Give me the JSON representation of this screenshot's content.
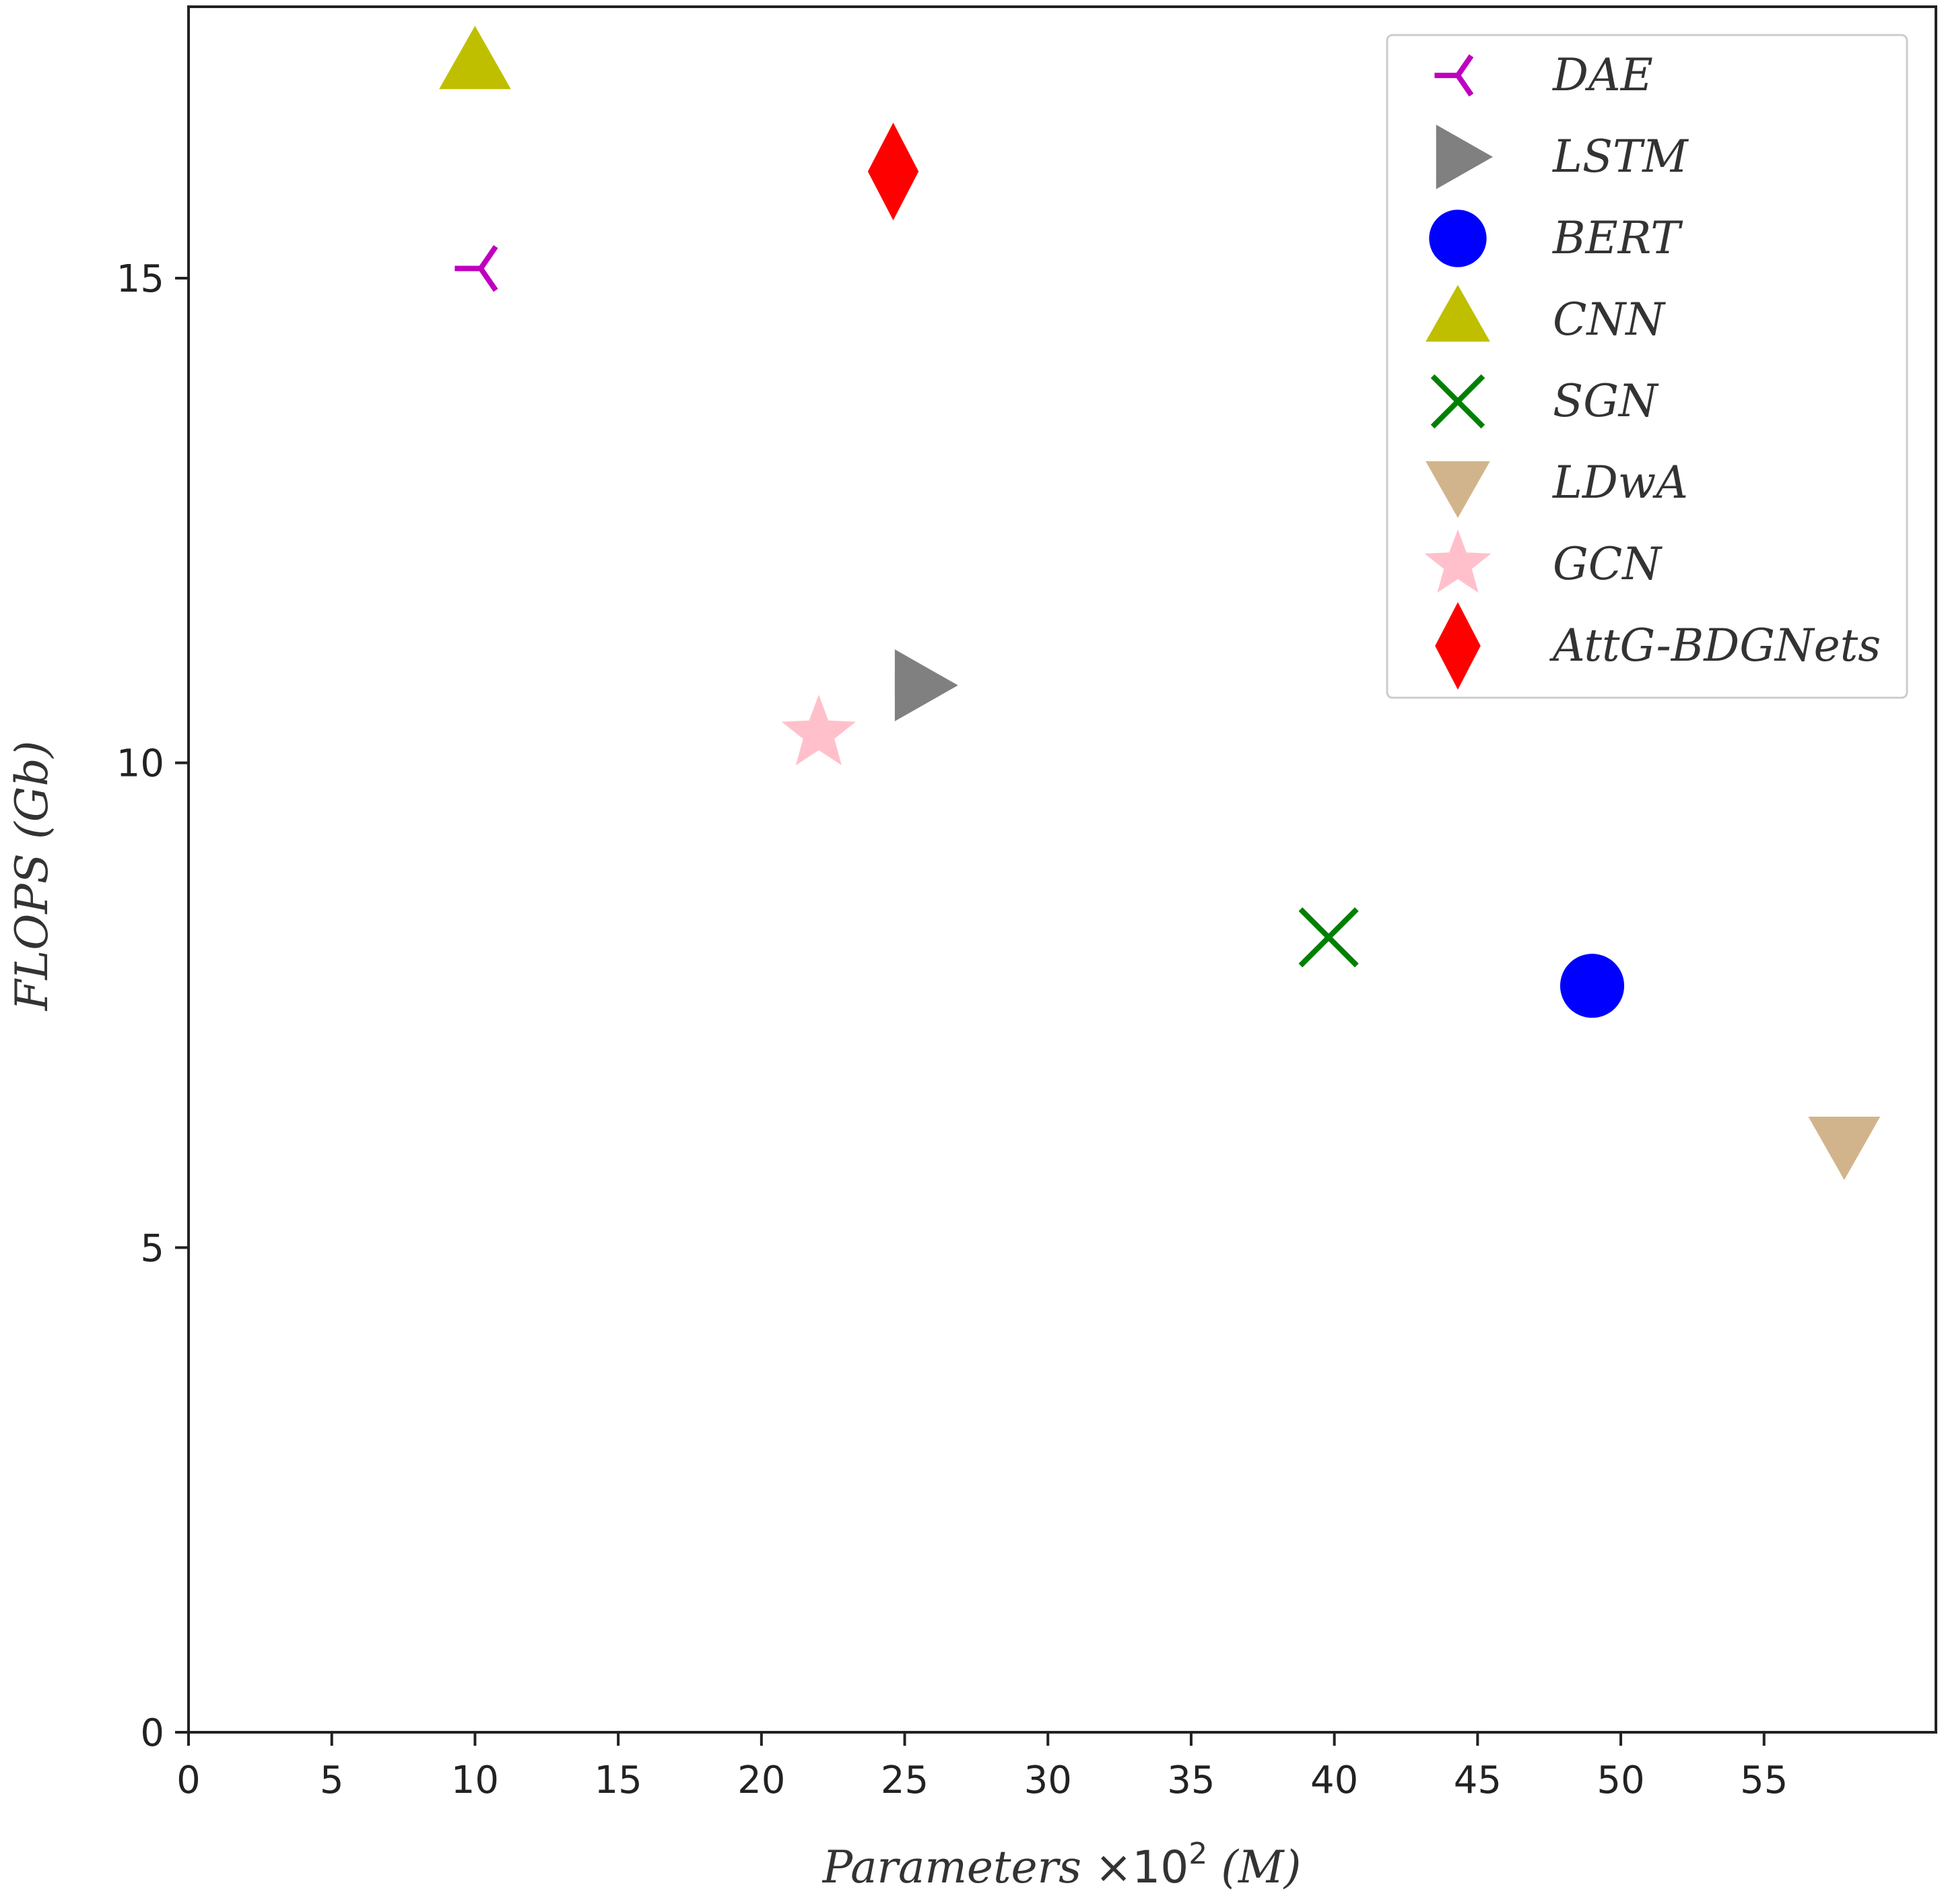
{
  "chart_data": {
    "type": "scatter",
    "title": "",
    "xlabel_main": "Parameters",
    "xlabel_times": "×10",
    "xlabel_exp": "2",
    "xlabel_unit": "(M)",
    "ylabel": "FLOPS (Gb)",
    "xlim": [
      0,
      61
    ],
    "ylim": [
      0,
      17.8
    ],
    "xticks": [
      0,
      5,
      10,
      15,
      20,
      25,
      30,
      35,
      40,
      45,
      50,
      55
    ],
    "yticks": [
      0,
      5,
      10,
      15
    ],
    "legend_position": "top-right",
    "series": [
      {
        "name": "DAE",
        "marker": "tri-left",
        "color": "#bf00bf",
        "x": 10.2,
        "y": 15.1
      },
      {
        "name": "LSTM",
        "marker": "triangle-right",
        "color": "#808080",
        "x": 25.5,
        "y": 10.8
      },
      {
        "name": "BERT",
        "marker": "circle",
        "color": "#0000ff",
        "x": 49.0,
        "y": 7.7
      },
      {
        "name": "CNN",
        "marker": "triangle-up",
        "color": "#bfbf00",
        "x": 10.0,
        "y": 17.2
      },
      {
        "name": "SGN",
        "marker": "x",
        "color": "#008000",
        "x": 39.8,
        "y": 8.2
      },
      {
        "name": "LDwA",
        "marker": "triangle-down",
        "color": "#d2b48c",
        "x": 57.8,
        "y": 6.1
      },
      {
        "name": "GCN",
        "marker": "star",
        "color": "#ffc0cb",
        "x": 22.0,
        "y": 10.3
      },
      {
        "name": "AttG-BDGNets",
        "marker": "diamond",
        "color": "#ff0000",
        "x": 24.6,
        "y": 16.1
      }
    ]
  }
}
